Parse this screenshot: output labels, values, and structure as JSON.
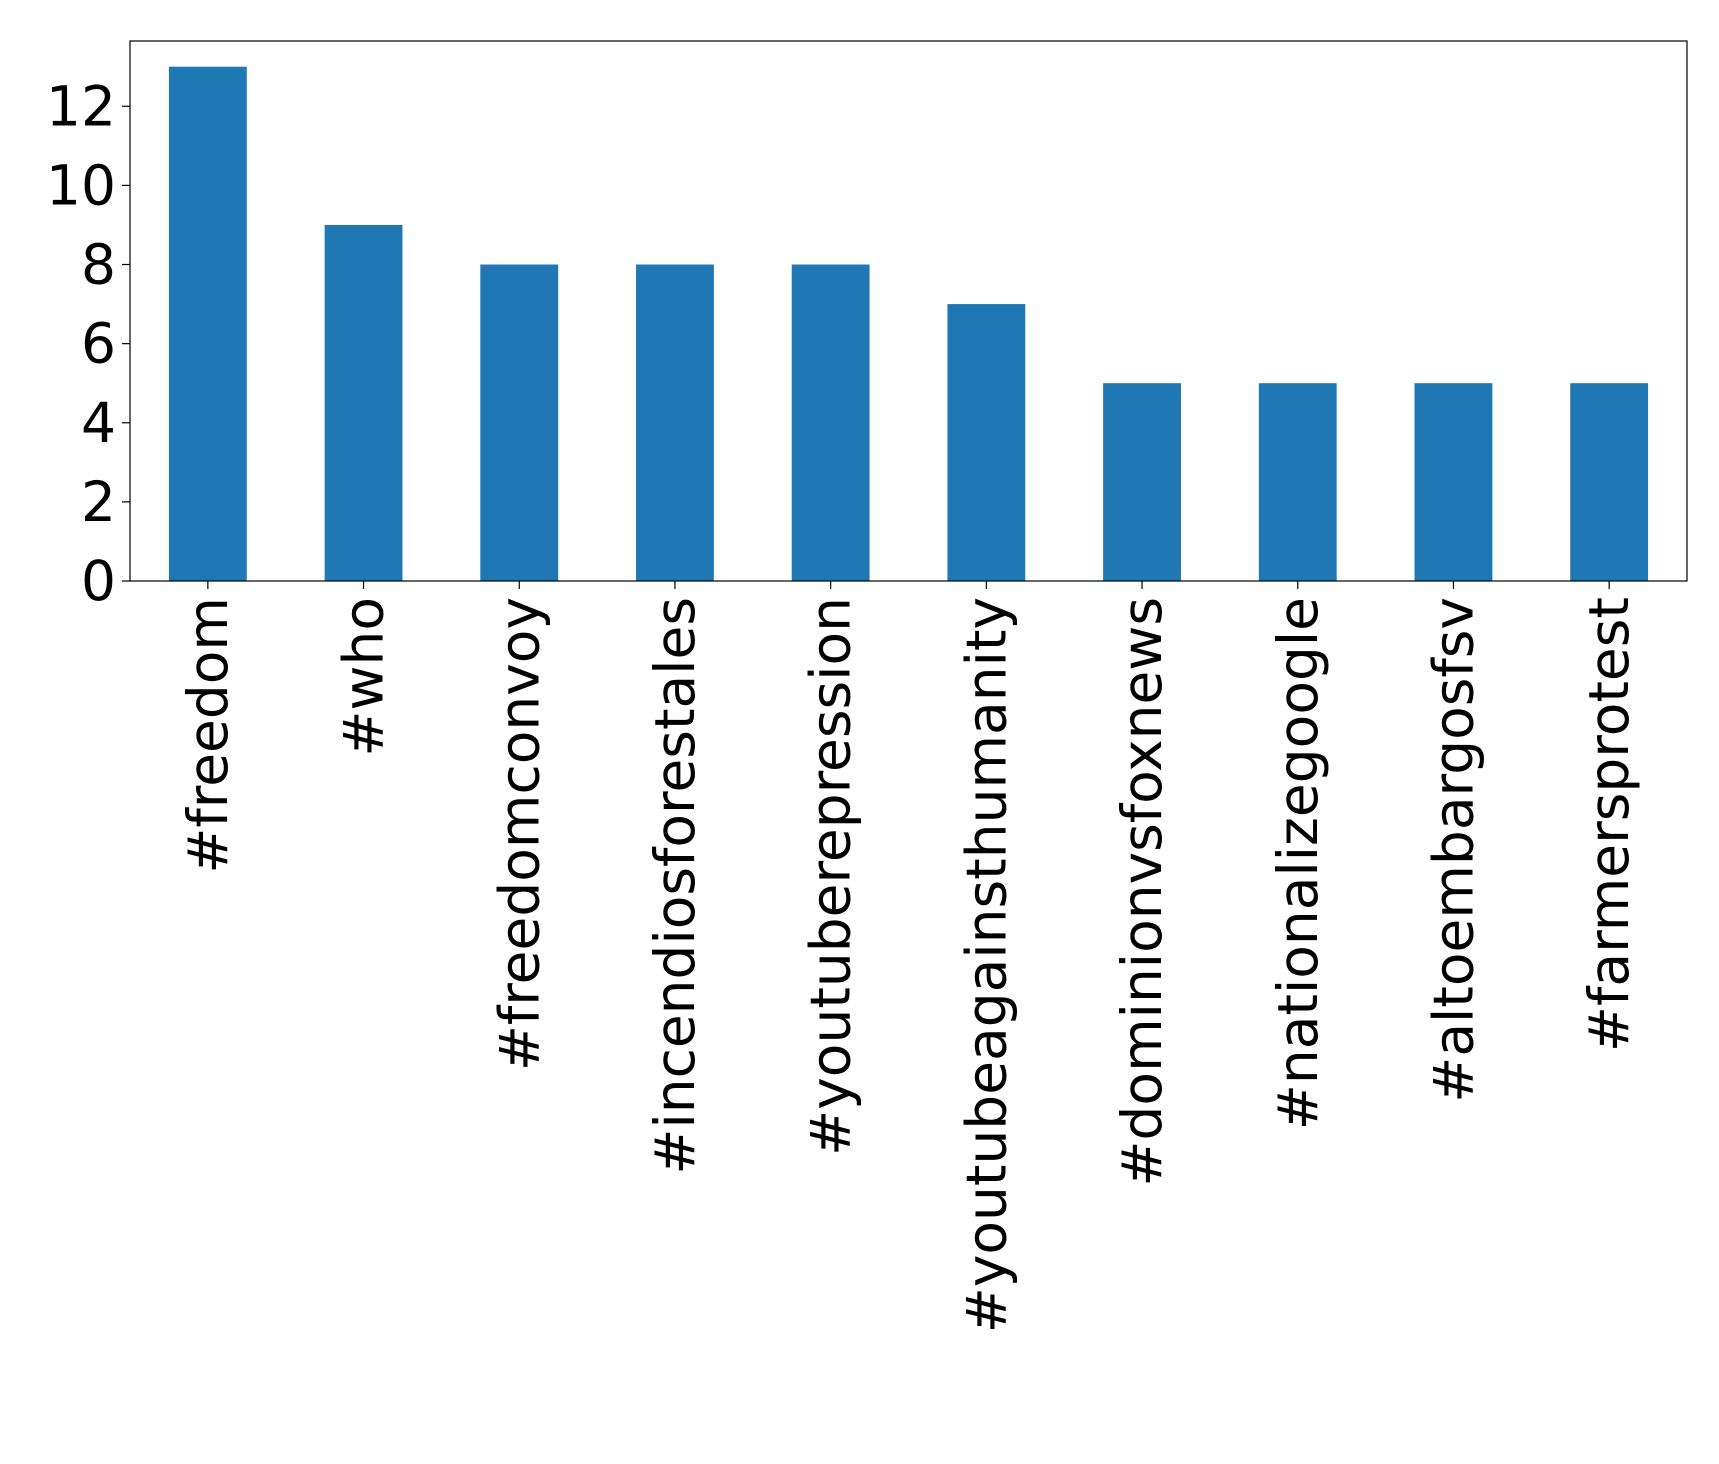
{
  "chart_data": {
    "type": "bar",
    "categories": [
      "#freedom",
      "#who",
      "#freedomconvoy",
      "#incendiosforestales",
      "#youtuberepression",
      "#youtubeagainsthumanity",
      "#dominionvsfoxnews",
      "#nationalizegoogle",
      "#altoembargosfsv",
      "#farmersprotest"
    ],
    "values": [
      13,
      9,
      8,
      8,
      8,
      7,
      5,
      5,
      5,
      5
    ],
    "color": "#1f77b4",
    "ylim": [
      0,
      13.65
    ],
    "yticks": [
      0,
      2,
      4,
      6,
      8,
      10,
      12
    ],
    "grid": false
  }
}
